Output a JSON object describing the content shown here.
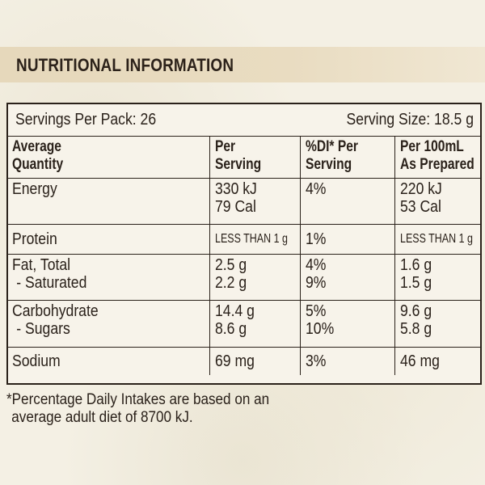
{
  "header": {
    "title": "NUTRITIONAL INFORMATION"
  },
  "servings": {
    "per_pack": "Servings Per Pack: 26",
    "serving_size": "Serving Size: 18.5 g"
  },
  "table": {
    "columns": [
      [
        "Average",
        "Quantity"
      ],
      [
        "Per",
        "Serving"
      ],
      [
        "%DI* Per",
        "Serving"
      ],
      [
        "Per 100mL",
        "As Prepared"
      ]
    ],
    "rows": [
      {
        "name": [
          "Energy"
        ],
        "per_serving": [
          "330 kJ",
          "79 Cal"
        ],
        "di": [
          "4%"
        ],
        "per_100ml": [
          "220 kJ",
          "53 Cal"
        ]
      },
      {
        "name": [
          "Protein"
        ],
        "per_serving": [
          "LESS THAN 1 g"
        ],
        "di": [
          "1%"
        ],
        "per_100ml": [
          "LESS THAN 1 g"
        ]
      },
      {
        "name": [
          "Fat, Total",
          "- Saturated"
        ],
        "per_serving": [
          "2.5 g",
          "2.2 g"
        ],
        "di": [
          "4%",
          "9%"
        ],
        "per_100ml": [
          "1.6 g",
          "1.5 g"
        ]
      },
      {
        "name": [
          "Carbohydrate",
          "- Sugars"
        ],
        "per_serving": [
          "14.4 g",
          "8.6 g"
        ],
        "di": [
          "5%",
          "10%"
        ],
        "per_100ml": [
          "9.6 g",
          "5.8 g"
        ]
      },
      {
        "name": [
          "Sodium"
        ],
        "per_serving": [
          "69 mg"
        ],
        "di": [
          "3%"
        ],
        "per_100ml": [
          "46 mg"
        ]
      }
    ]
  },
  "footnote": {
    "line1": "*Percentage Daily Intakes are based on an",
    "line2": "average adult diet of 8700 kJ."
  },
  "colors": {
    "background": "#f4f0e4",
    "header_band": "#e6d8bb",
    "text": "#2a211a"
  }
}
